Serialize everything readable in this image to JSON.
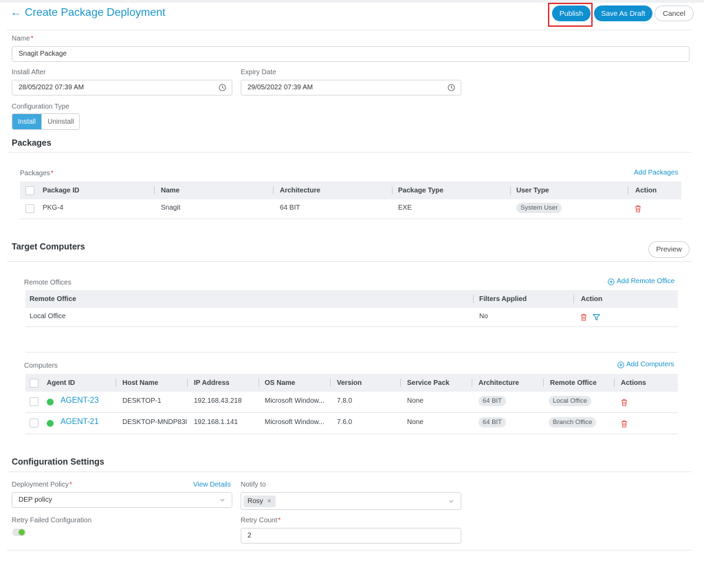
{
  "header": {
    "back_icon": "arrow-left-icon",
    "title": "Create Package Deployment",
    "publish_label": "Publish",
    "save_draft_label": "Save As Draft",
    "cancel_label": "Cancel"
  },
  "form": {
    "name_label": "Name",
    "name_value": "Snagit Package",
    "install_after_label": "Install After",
    "install_after_value": "28/05/2022 07:39 AM",
    "expiry_label": "Expiry Date",
    "expiry_value": "29/05/2022 07:39 AM",
    "config_type_label": "Configuration Type",
    "config_options": [
      "Install",
      "Uninstall"
    ],
    "config_selected": "Install"
  },
  "packages": {
    "section_title": "Packages",
    "label": "Packages",
    "add_label": "Add Packages",
    "columns": [
      "Package ID",
      "Name",
      "Architecture",
      "Package Type",
      "User Type",
      "Action"
    ],
    "rows": [
      {
        "id": "PKG-4",
        "name": "Snagit",
        "arch": "64 BIT",
        "type": "EXE",
        "user_type": "System User"
      }
    ]
  },
  "target": {
    "section_title": "Target Computers",
    "preview_label": "Preview",
    "remote_offices_label": "Remote Offices",
    "add_remote_office_label": "Add Remote Office",
    "office_columns": [
      "Remote Office",
      "Filters Applied",
      "Action"
    ],
    "office_rows": [
      {
        "office": "Local Office",
        "filters": "No"
      }
    ],
    "computers_label": "Computers",
    "add_computers_label": "Add Computers",
    "computer_columns": [
      "Agent ID",
      "Host Name",
      "IP Address",
      "OS Name",
      "Version",
      "Service Pack",
      "Architecture",
      "Remote Office",
      "Actions"
    ],
    "computer_rows": [
      {
        "agent": "AGENT-23",
        "host": "DESKTOP-1",
        "ip": "192.168.43.218",
        "os": "Microsoft Window...",
        "version": "7.8.0",
        "sp": "None",
        "arch": "64 BIT",
        "office": "Local Office"
      },
      {
        "agent": "AGENT-21",
        "host": "DESKTOP-MNDP83I",
        "ip": "192.168.1.141",
        "os": "Microsoft Window...",
        "version": "7.6.0",
        "sp": "None",
        "arch": "64 BIT",
        "office": "Branch Office"
      }
    ]
  },
  "config": {
    "section_title": "Configuration Settings",
    "policy_label": "Deployment Policy",
    "view_details_label": "View Details",
    "policy_value": "DEP policy",
    "notify_label": "Notify to",
    "notify_chip": "Rosy",
    "retry_failed_label": "Retry Failed Configuration",
    "retry_failed_on": true,
    "retry_count_label": "Retry Count",
    "retry_count_value": "2"
  },
  "colors": {
    "accent": "#1795cd",
    "primary_button": "#0f90d0",
    "highlight_box": "#e0312f",
    "status_online": "#3bc55a",
    "delete_icon": "#e45b55"
  }
}
